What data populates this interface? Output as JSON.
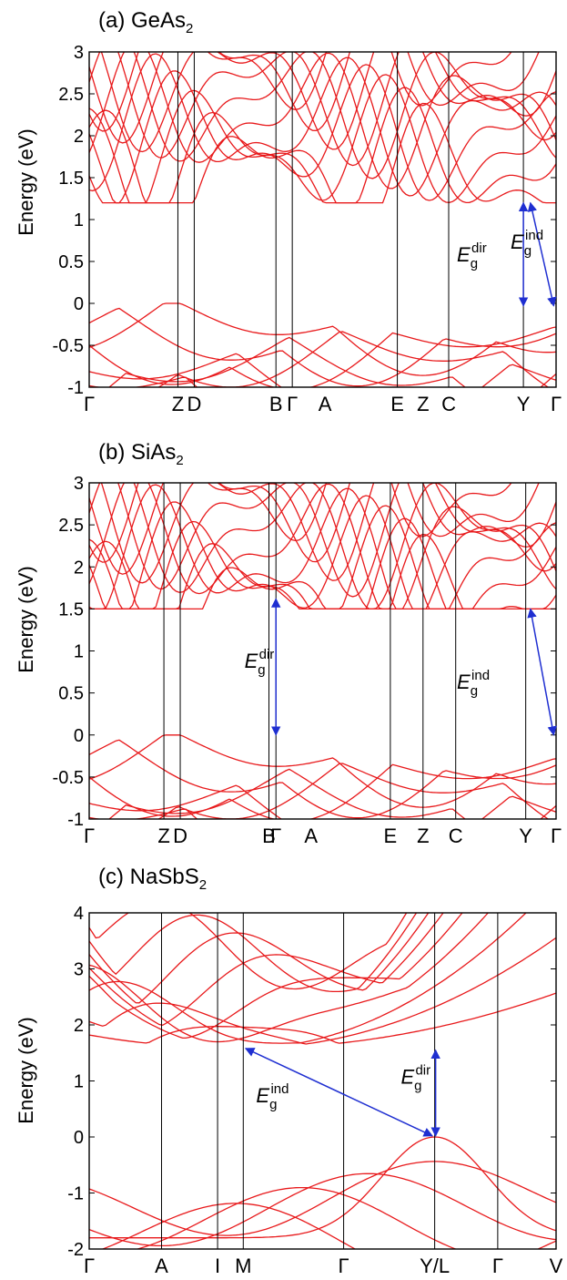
{
  "colors": {
    "band": "#e8191b",
    "arrow": "#1f2fd1",
    "frame": "#000000"
  },
  "panels": [
    {
      "title": "(a) GeAs",
      "title_sub": "2",
      "ylabel": "Energy (eV)",
      "ylim": [
        -1,
        3
      ],
      "yticks": [
        -1,
        -0.5,
        0,
        0.5,
        1,
        1.5,
        2,
        2.5,
        3
      ],
      "yticklabels": [
        "-1",
        "-0.5",
        "0",
        "0.5",
        "1",
        "1.5",
        "2",
        "2.5",
        "3"
      ],
      "kpoints": [
        {
          "label": "Γ",
          "k": 0,
          "line": false
        },
        {
          "label": "Z",
          "k": 0.19,
          "line": true
        },
        {
          "label": "D",
          "k": 0.225,
          "line": true
        },
        {
          "label": "B",
          "k": 0.4,
          "line": true
        },
        {
          "label": "Γ",
          "k": 0.435,
          "line": true
        },
        {
          "label": "A",
          "k": 0.505,
          "line": false
        },
        {
          "label": "E",
          "k": 0.66,
          "line": true
        },
        {
          "label": "Z",
          "k": 0.715,
          "line": false
        },
        {
          "label": "C",
          "k": 0.77,
          "line": true
        },
        {
          "label": "Y",
          "k": 0.93,
          "line": true
        },
        {
          "label": "Γ",
          "k": 1.0,
          "line": false
        }
      ],
      "gaps": [
        {
          "main": "E",
          "sub": "g",
          "sup": "dir",
          "k1": 0.93,
          "e1": 1.2,
          "k2": 0.93,
          "e2": -0.03,
          "label_k": 0.885,
          "label_e": 0.5
        },
        {
          "main": "E",
          "sub": "g",
          "sup": "ind",
          "k1": 0.945,
          "e1": 1.2,
          "k2": 0.995,
          "e2": -0.03,
          "label_k": 1.0,
          "label_e": 0.65
        }
      ]
    },
    {
      "title": "(b) SiAs",
      "title_sub": "2",
      "ylabel": "Energy (eV)",
      "ylim": [
        -1,
        3
      ],
      "yticks": [
        -1,
        -0.5,
        0,
        0.5,
        1,
        1.5,
        2,
        2.5,
        3
      ],
      "yticklabels": [
        "-1",
        "-0.5",
        "0",
        "0.5",
        "1",
        "1.5",
        "2",
        "2.5",
        "3"
      ],
      "kpoints": [
        {
          "label": "Γ",
          "k": 0,
          "line": false
        },
        {
          "label": "Z",
          "k": 0.16,
          "line": true
        },
        {
          "label": "D",
          "k": 0.195,
          "line": true
        },
        {
          "label": "B",
          "k": 0.385,
          "line": true
        },
        {
          "label": "Γ",
          "k": 0.4,
          "line": true
        },
        {
          "label": "A",
          "k": 0.475,
          "line": false
        },
        {
          "label": "E",
          "k": 0.645,
          "line": true
        },
        {
          "label": "Z",
          "k": 0.715,
          "line": true
        },
        {
          "label": "C",
          "k": 0.785,
          "line": true
        },
        {
          "label": "Y",
          "k": 0.935,
          "line": true
        },
        {
          "label": "Γ",
          "k": 1.0,
          "line": false
        }
      ],
      "gaps": [
        {
          "main": "E",
          "sub": "g",
          "sup": "dir",
          "k1": 0.4,
          "e1": 1.62,
          "k2": 0.4,
          "e2": 0.0,
          "label_k": 0.43,
          "label_e": 0.8
        },
        {
          "main": "E",
          "sub": "g",
          "sup": "ind",
          "k1": 0.945,
          "e1": 1.5,
          "k2": 0.995,
          "e2": 0.0,
          "label_k": 0.885,
          "label_e": 0.55
        }
      ]
    },
    {
      "title": "(c) NaSbS",
      "title_sub": "2",
      "ylabel": "Energy (eV)",
      "ylim": [
        -2,
        4
      ],
      "yticks": [
        -2,
        -1,
        0,
        1,
        2,
        3,
        4
      ],
      "yticklabels": [
        "-2",
        "-1",
        "0",
        "1",
        "2",
        "3",
        "4"
      ],
      "kpoints": [
        {
          "label": "Γ",
          "k": 0,
          "line": false
        },
        {
          "label": "A",
          "k": 0.155,
          "line": true
        },
        {
          "label": "I",
          "k": 0.275,
          "line": true
        },
        {
          "label": "M",
          "k": 0.33,
          "line": true
        },
        {
          "label": "Γ",
          "k": 0.545,
          "line": true
        },
        {
          "label": "Y/L",
          "k": 0.74,
          "line": true
        },
        {
          "label": "Γ",
          "k": 0.875,
          "line": true
        },
        {
          "label": "V",
          "k": 1.0,
          "line": false
        }
      ],
      "gaps": [
        {
          "main": "E",
          "sub": "g",
          "sup": "ind",
          "k1": 0.335,
          "e1": 1.58,
          "k2": 0.735,
          "e2": 0.02,
          "label_k": 0.455,
          "label_e": 0.62
        },
        {
          "main": "E",
          "sub": "g",
          "sup": "dir",
          "k1": 0.742,
          "e1": 1.55,
          "k2": 0.742,
          "e2": 0.02,
          "label_k": 0.765,
          "label_e": 0.95
        }
      ]
    }
  ]
}
